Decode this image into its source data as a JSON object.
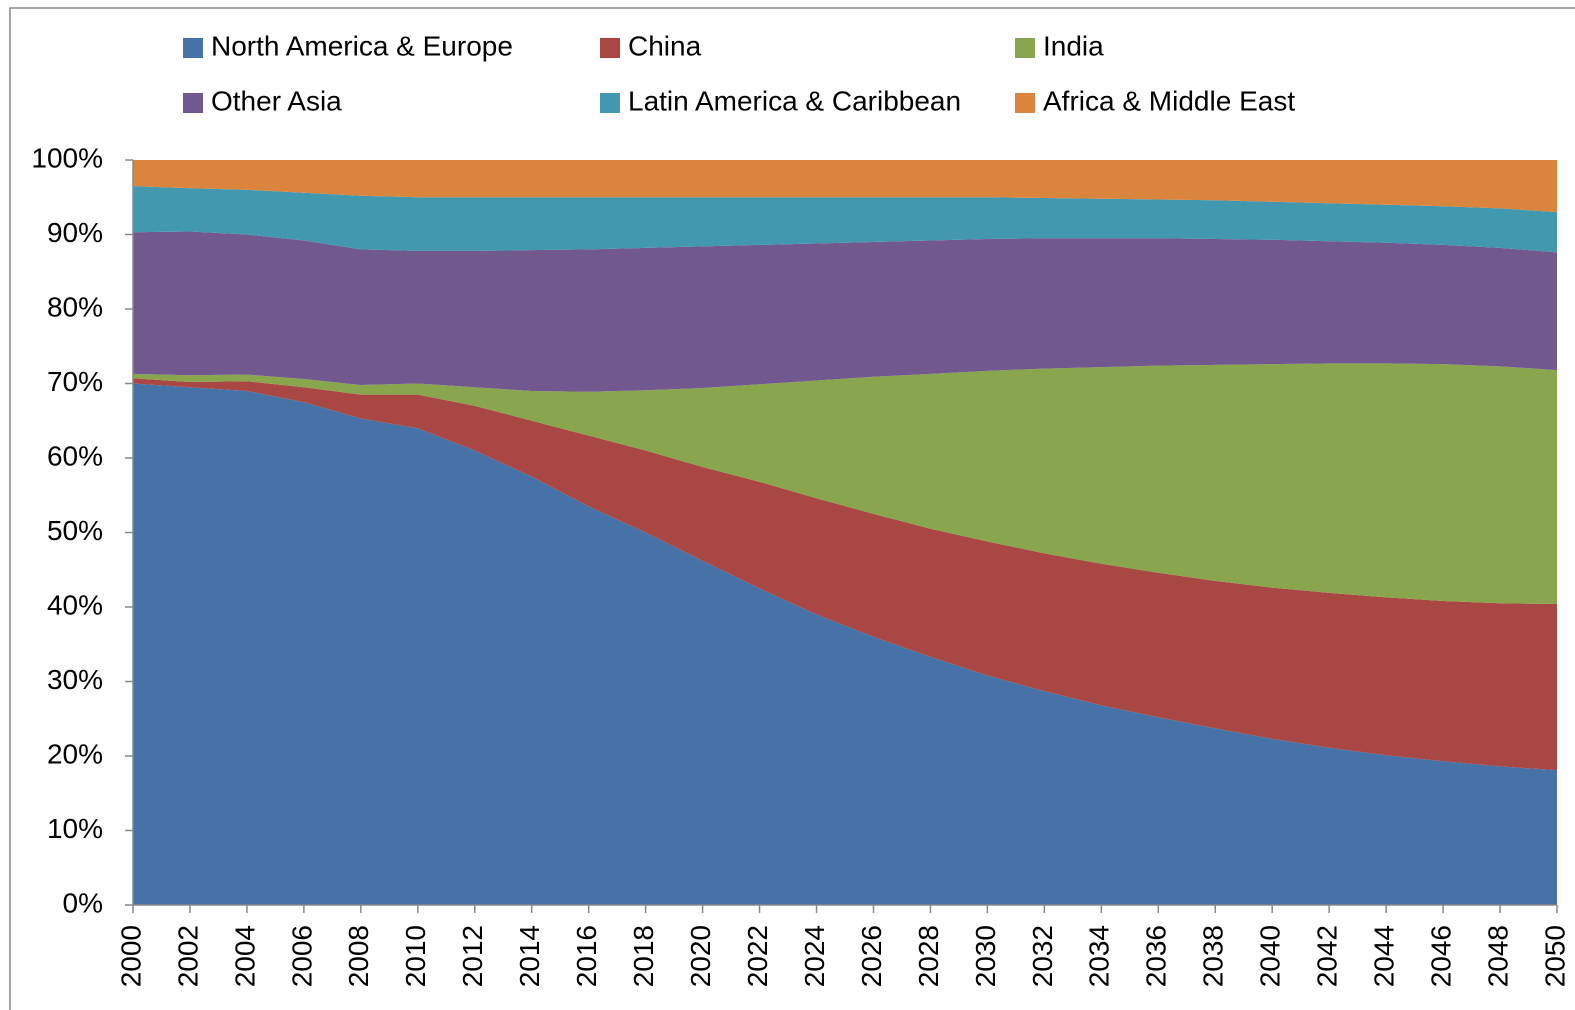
{
  "chart_data": {
    "type": "stacked-area",
    "categories": [
      "2000",
      "2002",
      "2004",
      "2006",
      "2008",
      "2010",
      "2012",
      "2014",
      "2016",
      "2018",
      "2020",
      "2022",
      "2024",
      "2026",
      "2028",
      "2030",
      "2032",
      "2034",
      "2036",
      "2038",
      "2040",
      "2042",
      "2044",
      "2046",
      "2048",
      "2050"
    ],
    "series": [
      {
        "name": "North America & Europe",
        "color": "#4672a8",
        "values": [
          70,
          69.5,
          69,
          67.5,
          65.3,
          64,
          61,
          57.5,
          53.5,
          50,
          46.2,
          42.5,
          39,
          36,
          33.3,
          30.8,
          28.7,
          26.8,
          25.2,
          23.7,
          22.3,
          21.1,
          20.1,
          19.3,
          18.6,
          18.1
        ]
      },
      {
        "name": "China",
        "color": "#a94744",
        "values": [
          0.7,
          0.7,
          1.3,
          2,
          3.2,
          4.5,
          6,
          7.5,
          9.5,
          11,
          12.6,
          14.3,
          15.6,
          16.5,
          17.2,
          18,
          18.5,
          19,
          19.4,
          19.8,
          20.3,
          20.8,
          21.2,
          21.5,
          21.9,
          22.3
        ]
      },
      {
        "name": "India",
        "color": "#89a54e",
        "values": [
          0.6,
          0.9,
          0.9,
          1.1,
          1.3,
          1.5,
          2.5,
          4,
          5.9,
          8.1,
          10.6,
          13.1,
          15.8,
          18.4,
          20.8,
          22.9,
          24.8,
          26.4,
          27.8,
          29,
          30,
          30.8,
          31.4,
          31.8,
          31.8,
          31.4
        ]
      },
      {
        "name": "Other Asia",
        "color": "#71588f",
        "values": [
          19,
          19.3,
          18.8,
          18.6,
          18.2,
          17.8,
          18.3,
          18.9,
          19.1,
          19.1,
          19,
          18.7,
          18.4,
          18.1,
          17.9,
          17.7,
          17.5,
          17.3,
          17.1,
          16.9,
          16.7,
          16.4,
          16.2,
          16,
          15.9,
          15.8
        ]
      },
      {
        "name": "Latin America & Caribbean",
        "color": "#4198af",
        "values": [
          6.2,
          5.8,
          6,
          6.4,
          7.2,
          7.2,
          7.2,
          7.1,
          7,
          6.8,
          6.6,
          6.4,
          6.2,
          6,
          5.8,
          5.6,
          5.4,
          5.3,
          5.2,
          5.2,
          5.1,
          5.1,
          5.1,
          5.2,
          5.3,
          5.4
        ]
      },
      {
        "name": "Africa & Middle East",
        "color": "#db843d",
        "values": [
          3.5,
          3.8,
          4,
          4.4,
          4.8,
          5,
          5,
          5,
          5,
          5,
          5,
          5,
          5,
          5,
          5,
          5,
          5.1,
          5.2,
          5.3,
          5.4,
          5.6,
          5.8,
          6,
          6.2,
          6.5,
          7
        ]
      }
    ],
    "ylim": [
      0,
      100
    ],
    "yticks": [
      {
        "value": 0,
        "label": "0%"
      },
      {
        "value": 10,
        "label": "10%"
      },
      {
        "value": 20,
        "label": "20%"
      },
      {
        "value": 30,
        "label": "30%"
      },
      {
        "value": 40,
        "label": "40%"
      },
      {
        "value": 50,
        "label": "50%"
      },
      {
        "value": 60,
        "label": "60%"
      },
      {
        "value": 70,
        "label": "70%"
      },
      {
        "value": 80,
        "label": "80%"
      },
      {
        "value": 90,
        "label": "90%"
      },
      {
        "value": 100,
        "label": "100%"
      }
    ],
    "grid": false
  }
}
